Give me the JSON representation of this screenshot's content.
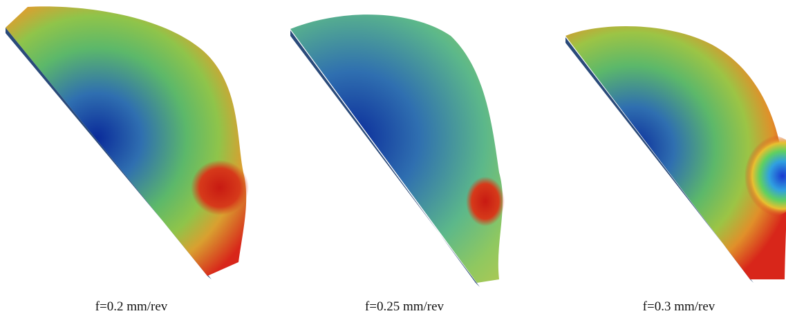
{
  "captions": [
    "f=0.2 mm/rev",
    "f=0.25 mm/rev",
    "f=0.3 mm/rev"
  ]
}
